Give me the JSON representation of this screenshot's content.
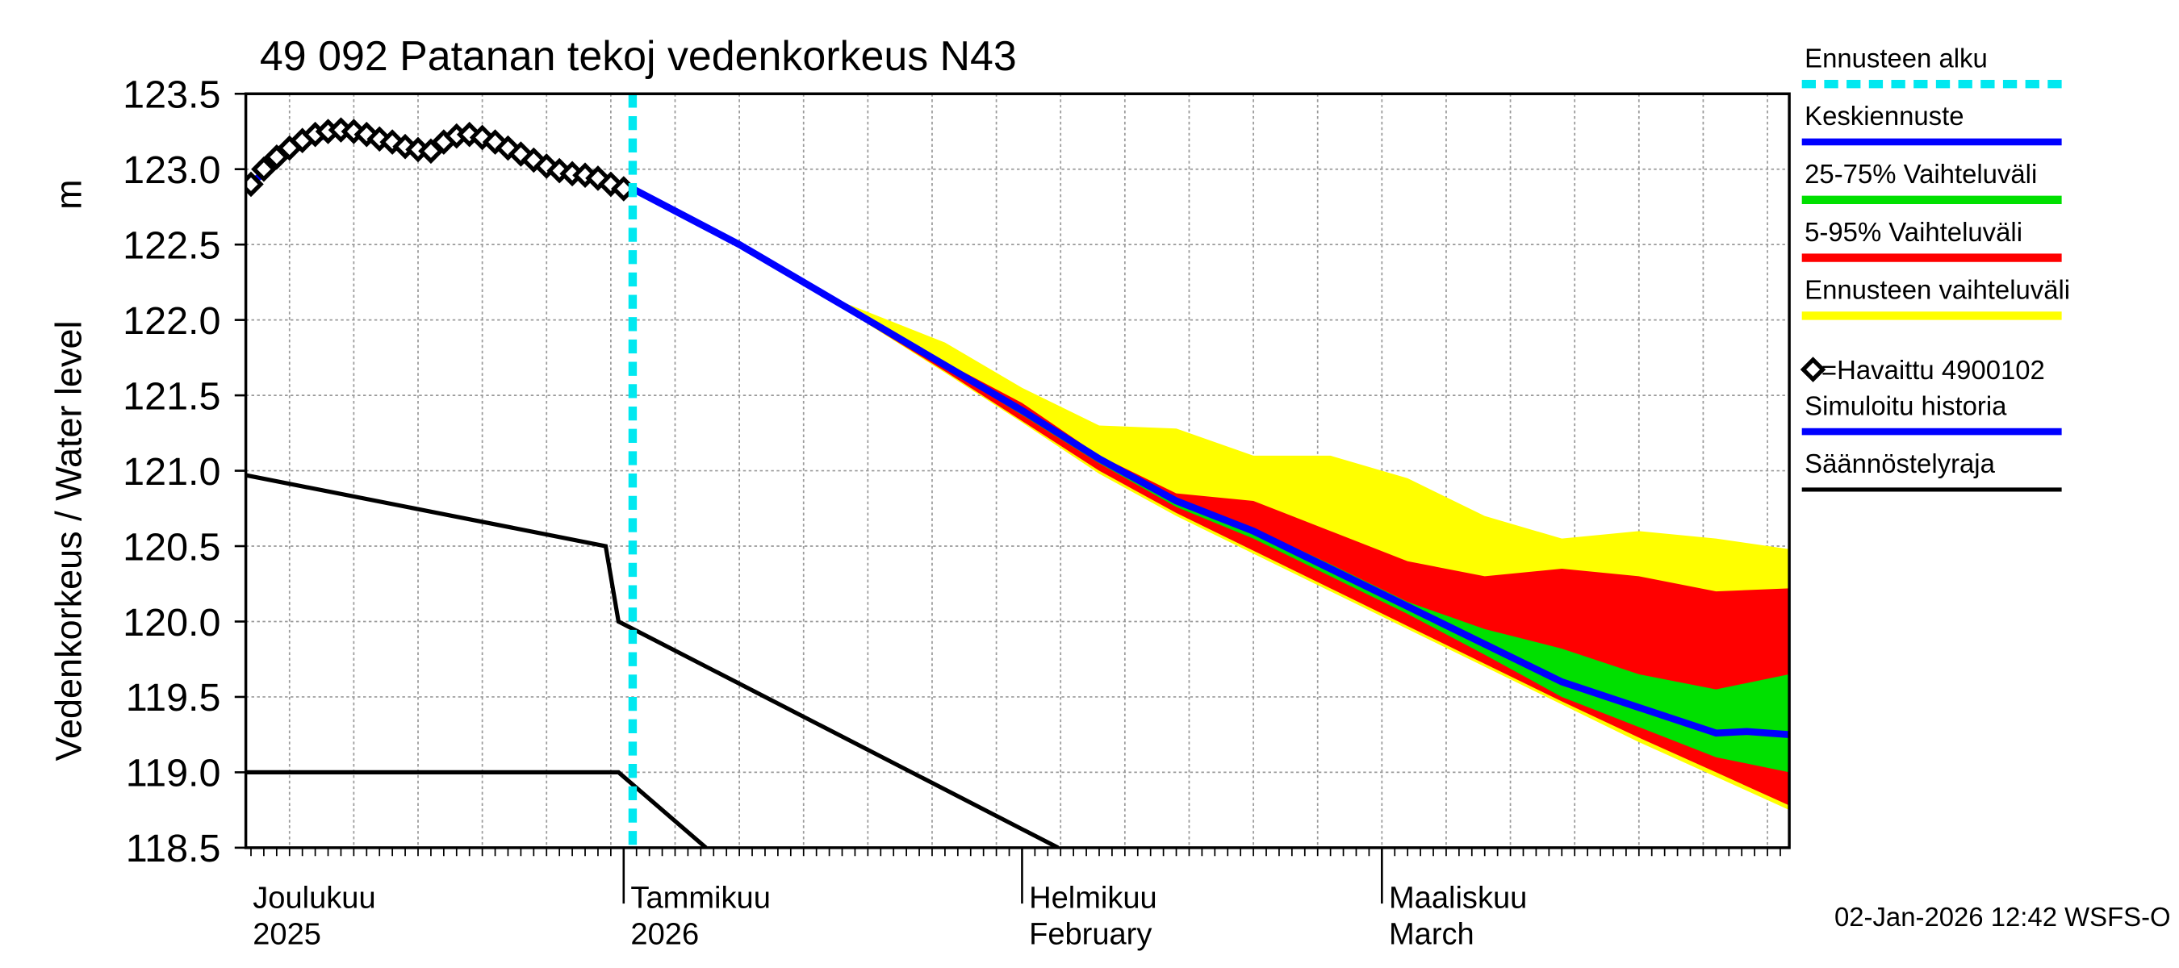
{
  "chart_data": {
    "type": "line",
    "title": "49 092 Patanan tekoj vedenkorkeus N43",
    "ylabel": "Vedenkorkeus / Water level",
    "yunit": "m",
    "timestamp": "02-Jan-2026 12:42 WSFS-O",
    "xlim": [
      1.6,
      121.7
    ],
    "ylim": [
      118.5,
      123.5
    ],
    "yticks": [
      {
        "value": 118.5,
        "label": "118.5"
      },
      {
        "value": 119,
        "label": "119.0"
      },
      {
        "value": 119.5,
        "label": "119.5"
      },
      {
        "value": 120,
        "label": "120.0"
      },
      {
        "value": 120.5,
        "label": "120.5"
      },
      {
        "value": 121,
        "label": "121.0"
      },
      {
        "value": 121.5,
        "label": "121.5"
      },
      {
        "value": 122,
        "label": "122.0"
      },
      {
        "value": 122.5,
        "label": "122.5"
      },
      {
        "value": 123,
        "label": "123.0"
      },
      {
        "value": 123.5,
        "label": "123.5"
      }
    ],
    "xticks": [
      {
        "value": 0,
        "label": "Joulukuu",
        "sublabel": "2025"
      },
      {
        "value": 31,
        "label": "Tammikuu",
        "sublabel": "2026"
      },
      {
        "value": 62,
        "label": "Helmikuu",
        "sublabel": "February"
      },
      {
        "value": 90,
        "label": "Maaliskuu",
        "sublabel": "March"
      }
    ],
    "grid": true,
    "series": [
      {
        "name": "Ennusteen alku",
        "kind": "vline",
        "color": "#00e8f0",
        "x": 31.7
      },
      {
        "name": "Keskiennuste",
        "kind": "line",
        "color": "#0000ff",
        "x": [
          31.7,
          40,
          48,
          56,
          62,
          68,
          74,
          80,
          86,
          92,
          98,
          104,
          110,
          116,
          118.4,
          121.7
        ],
        "values": [
          122.87,
          122.5,
          122.1,
          121.7,
          121.4,
          121.08,
          120.8,
          120.6,
          120.35,
          120.1,
          119.85,
          119.6,
          119.43,
          119.26,
          119.27,
          119.25
        ]
      },
      {
        "name": "25-75% Vaihteluväli",
        "kind": "band",
        "color": "#00e000",
        "x": [
          31.7,
          40,
          48,
          56,
          62,
          68,
          74,
          80,
          86,
          92,
          98,
          104,
          110,
          116,
          121.7
        ],
        "high": [
          122.87,
          122.5,
          122.1,
          121.71,
          121.42,
          121.1,
          120.82,
          120.62,
          120.38,
          120.13,
          119.95,
          119.82,
          119.65,
          119.55,
          119.65
        ],
        "low": [
          122.87,
          122.49,
          122.09,
          121.68,
          121.37,
          121.05,
          120.76,
          120.55,
          120.3,
          120.05,
          119.78,
          119.5,
          119.3,
          119.1,
          119.0
        ]
      },
      {
        "name": "5-95% Vaihteluväli",
        "kind": "band",
        "color": "#ff0000",
        "x": [
          31.7,
          40,
          48,
          56,
          62,
          68,
          74,
          80,
          86,
          92,
          98,
          104,
          110,
          116,
          121.7
        ],
        "high": [
          122.87,
          122.5,
          122.1,
          121.72,
          121.45,
          121.1,
          120.85,
          120.8,
          120.6,
          120.4,
          120.3,
          120.35,
          120.3,
          120.2,
          120.22
        ],
        "low": [
          122.87,
          122.48,
          122.08,
          121.66,
          121.33,
          121.0,
          120.72,
          120.47,
          120.22,
          119.97,
          119.72,
          119.47,
          119.23,
          119.0,
          118.78
        ]
      },
      {
        "name": "Ennusteen vaihteluväli",
        "kind": "band",
        "color": "#ffff00",
        "x": [
          31.7,
          40,
          48,
          56,
          62,
          68,
          74,
          80,
          86,
          92,
          98,
          104,
          110,
          116,
          121.7
        ],
        "high": [
          122.87,
          122.5,
          122.12,
          121.85,
          121.55,
          121.3,
          121.28,
          121.1,
          121.1,
          120.95,
          120.7,
          120.55,
          120.6,
          120.55,
          120.48
        ],
        "low": [
          122.87,
          122.48,
          122.08,
          121.65,
          121.32,
          120.98,
          120.7,
          120.45,
          120.2,
          119.95,
          119.7,
          119.45,
          119.2,
          118.97,
          118.75
        ]
      },
      {
        "name": "=Havaittu 4900102",
        "kind": "markers",
        "color": "#000000",
        "x": [
          2,
          3,
          4,
          5,
          6,
          7,
          8,
          9,
          10,
          11,
          12,
          13,
          14,
          15,
          16,
          17,
          18,
          19,
          20,
          21,
          22,
          23,
          24,
          25,
          26,
          27,
          28,
          29,
          30,
          31
        ],
        "values": [
          122.9,
          123.0,
          123.08,
          123.14,
          123.19,
          123.23,
          123.25,
          123.26,
          123.25,
          123.23,
          123.2,
          123.18,
          123.15,
          123.13,
          123.12,
          123.18,
          123.22,
          123.23,
          123.21,
          123.18,
          123.14,
          123.1,
          123.06,
          123.02,
          122.99,
          122.97,
          122.96,
          122.94,
          122.9,
          122.87
        ]
      },
      {
        "name": "Simuloitu historia",
        "kind": "line",
        "color": "#0000ff",
        "x": [
          2,
          5,
          9,
          13,
          16,
          19,
          23,
          27,
          31.7
        ],
        "values": [
          122.9,
          123.14,
          123.26,
          123.18,
          123.12,
          123.23,
          123.1,
          122.98,
          122.87
        ]
      },
      {
        "name": "Säännöstelyraja",
        "kind": "line",
        "color": "#000000",
        "x": [
          1.6,
          29.6,
          30.6,
          64.8,
          64.8,
          1.6,
          30.6,
          37.4
        ],
        "values": [
          120.97,
          120.5,
          120.0,
          118.5,
          null,
          119.0,
          119.0,
          118.5
        ]
      }
    ]
  }
}
